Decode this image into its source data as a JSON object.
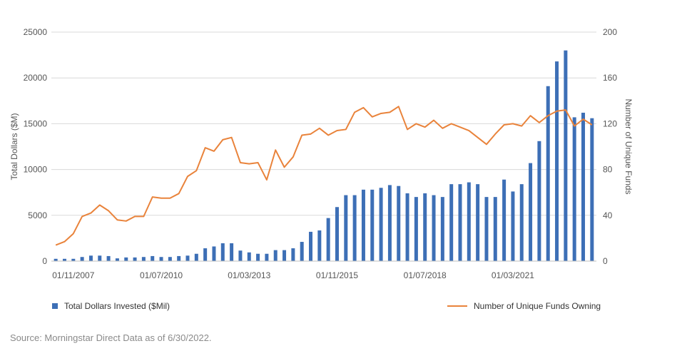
{
  "chart_data": {
    "type": "bar",
    "title": "",
    "xlabel": "",
    "ylabel": "Total Dollars ($M)",
    "y2label": "Number of Unique Funds",
    "ylim": [
      0,
      25000
    ],
    "y2lim": [
      0,
      200
    ],
    "yticks": [
      0,
      5000,
      10000,
      15000,
      20000,
      25000
    ],
    "y2ticks": [
      0,
      40,
      80,
      120,
      160,
      200
    ],
    "x_tick_labels": [
      "01/11/2007",
      "01/07/2010",
      "01/03/2013",
      "01/11/2015",
      "01/07/2018",
      "01/03/2021"
    ],
    "x_tick_indices": [
      2,
      12,
      22,
      32,
      42,
      52
    ],
    "grid": true,
    "legend_position": "bottom",
    "series": [
      {
        "name": "Total Dollars Invested ($Mil)",
        "type": "bar",
        "axis": "left",
        "color": "#3d6fb6",
        "values": [
          250,
          250,
          250,
          450,
          600,
          600,
          550,
          300,
          400,
          400,
          450,
          550,
          450,
          450,
          550,
          600,
          800,
          1400,
          1600,
          1950,
          1950,
          1150,
          950,
          800,
          800,
          1200,
          1200,
          1400,
          2100,
          3200,
          3350,
          4700,
          5900,
          7200,
          7200,
          7800,
          7800,
          8000,
          8300,
          8200,
          7400,
          7000,
          7400,
          7200,
          7000,
          8400,
          8400,
          8600,
          8400,
          7000,
          7000,
          8900,
          7600,
          8400,
          10700,
          13100,
          19100,
          21800,
          23000,
          15700,
          16200,
          15600
        ]
      },
      {
        "name": "Number of Unique Funds Owning",
        "type": "line",
        "axis": "right",
        "color": "#e9833b",
        "values": [
          14,
          17,
          24,
          39,
          42,
          49,
          44,
          36,
          35,
          39,
          39,
          56,
          55,
          55,
          59,
          74,
          79,
          99,
          96,
          106,
          108,
          86,
          85,
          86,
          71,
          97,
          82,
          91,
          110,
          111,
          116,
          110,
          114,
          115,
          130,
          134,
          126,
          129,
          130,
          135,
          115,
          120,
          117,
          123,
          116,
          120,
          117,
          114,
          108,
          102,
          111,
          119,
          120,
          118,
          127,
          121,
          127,
          131,
          132,
          118,
          124,
          119
        ]
      }
    ]
  },
  "source_text": "Source: Morningstar Direct Data as of 6/30/2022."
}
